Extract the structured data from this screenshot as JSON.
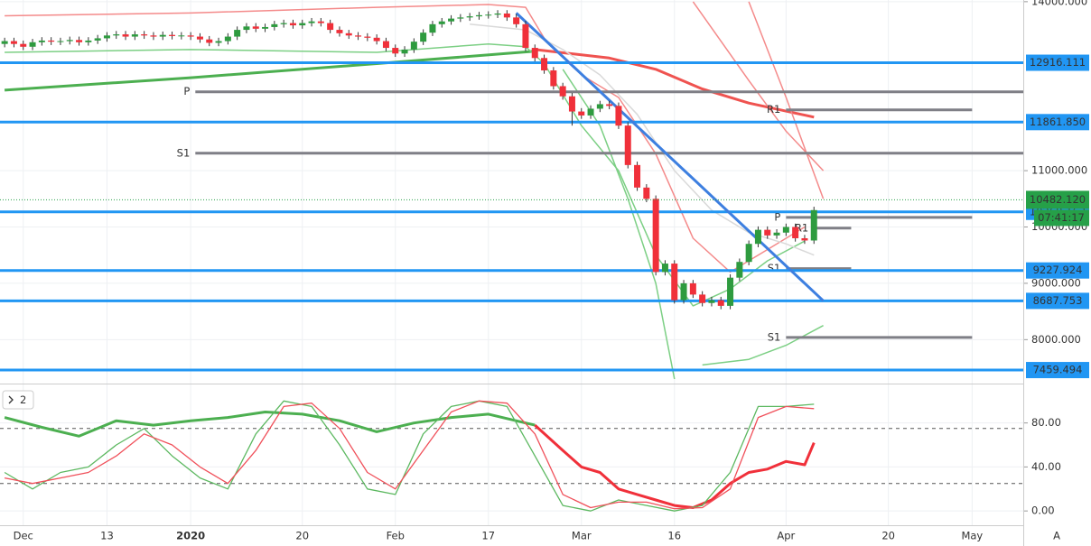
{
  "chart_data": [
    {
      "type": "candlestick",
      "xlim": [
        -0.5,
        109.5
      ],
      "ylim": [
        7220,
        14030
      ],
      "xticks": [
        {
          "value": 2,
          "label": "Dec"
        },
        {
          "value": 11,
          "label": "13"
        },
        {
          "value": 20,
          "label": "2020"
        },
        {
          "value": 32,
          "label": "20"
        },
        {
          "value": 42,
          "label": "Feb"
        },
        {
          "value": 52,
          "label": "17"
        },
        {
          "value": 62,
          "label": "Mar"
        },
        {
          "value": 72,
          "label": "16"
        },
        {
          "value": 84,
          "label": "Apr"
        },
        {
          "value": 95,
          "label": "20"
        },
        {
          "value": 104,
          "label": "May"
        }
      ],
      "yticks": [
        {
          "value": 14000,
          "label": "14000.000"
        },
        {
          "value": 11000,
          "label": "11000.000"
        },
        {
          "value": 10000,
          "label": "10000.000"
        },
        {
          "value": 9000,
          "label": "9000.000"
        },
        {
          "value": 8000,
          "label": "8000.000"
        }
      ],
      "up_color": "#2e9b3f",
      "down_color": "#f0303a",
      "open": [
        13250,
        13300,
        13250,
        13200,
        13280,
        13310,
        13290,
        13300,
        13320,
        13280,
        13310,
        13350,
        13400,
        13420,
        13380,
        13420,
        13400,
        13380,
        13410,
        13390,
        13400,
        13380,
        13330,
        13270,
        13300,
        13380,
        13500,
        13560,
        13520,
        13550,
        13600,
        13620,
        13580,
        13620,
        13650,
        13620,
        13500,
        13440,
        13400,
        13380,
        13360,
        13300,
        13180,
        13080,
        13150,
        13290,
        13450,
        13600,
        13650,
        13700,
        13720,
        13740,
        13760,
        13770,
        13790,
        13720,
        13600,
        13180,
        13000,
        12780,
        12500,
        12320,
        12050,
        11980,
        12100,
        12180,
        12150,
        11800,
        11100,
        10700,
        10500,
        9200,
        9350,
        8700,
        9000,
        8800,
        8650,
        8700,
        8600,
        9100,
        9380,
        9700,
        9950,
        9850,
        9900,
        10000,
        9800,
        9760
      ],
      "high": [
        13360,
        13360,
        13310,
        13340,
        13370,
        13370,
        13360,
        13380,
        13380,
        13370,
        13410,
        13460,
        13480,
        13480,
        13480,
        13480,
        13460,
        13470,
        13470,
        13460,
        13460,
        13440,
        13390,
        13360,
        13440,
        13560,
        13620,
        13620,
        13610,
        13660,
        13680,
        13680,
        13680,
        13710,
        13710,
        13680,
        13560,
        13500,
        13460,
        13440,
        13420,
        13360,
        13240,
        13210,
        13350,
        13510,
        13660,
        13710,
        13760,
        13780,
        13800,
        13820,
        13830,
        13850,
        13850,
        13780,
        13660,
        13240,
        13060,
        12840,
        12560,
        12380,
        12110,
        12160,
        12240,
        12240,
        12210,
        11860,
        11160,
        10760,
        10560,
        9410,
        9410,
        9060,
        9060,
        8860,
        8760,
        8760,
        9160,
        9440,
        9760,
        10010,
        10010,
        9960,
        10060,
        10060,
        9860,
        10360
      ],
      "low": [
        13190,
        13190,
        13140,
        13140,
        13220,
        13230,
        13230,
        13240,
        13220,
        13220,
        13250,
        13290,
        13340,
        13320,
        13320,
        13340,
        13320,
        13320,
        13330,
        13330,
        13320,
        13270,
        13210,
        13210,
        13240,
        13320,
        13440,
        13460,
        13460,
        13490,
        13540,
        13520,
        13520,
        13560,
        13560,
        13440,
        13380,
        13340,
        13320,
        13300,
        13240,
        13120,
        13020,
        13020,
        13090,
        13230,
        13390,
        13540,
        13590,
        13640,
        13660,
        13680,
        13700,
        13710,
        13660,
        13540,
        13120,
        12940,
        12720,
        12440,
        12260,
        11800,
        11920,
        11920,
        12040,
        12090,
        11740,
        11040,
        10640,
        10440,
        9140,
        9140,
        8640,
        8640,
        8740,
        8590,
        8590,
        8540,
        8540,
        9040,
        9320,
        9640,
        9790,
        9790,
        9840,
        9740,
        9700,
        9700
      ],
      "close": [
        13300,
        13250,
        13200,
        13280,
        13310,
        13290,
        13300,
        13320,
        13280,
        13310,
        13350,
        13400,
        13420,
        13380,
        13420,
        13400,
        13380,
        13410,
        13390,
        13400,
        13380,
        13330,
        13270,
        13300,
        13380,
        13500,
        13560,
        13520,
        13550,
        13600,
        13620,
        13580,
        13620,
        13650,
        13620,
        13500,
        13440,
        13400,
        13380,
        13360,
        13300,
        13180,
        13080,
        13150,
        13290,
        13450,
        13600,
        13650,
        13700,
        13720,
        13740,
        13760,
        13770,
        13790,
        13720,
        13600,
        13180,
        13000,
        12780,
        12500,
        12320,
        12050,
        11980,
        12100,
        12180,
        12150,
        11800,
        11100,
        10700,
        10500,
        9200,
        9350,
        8700,
        9000,
        8800,
        8650,
        8700,
        8600,
        9100,
        9380,
        9700,
        9950,
        9850,
        9900,
        10000,
        9800,
        9760,
        10300
      ],
      "overlays": [
        {
          "color": "#4caf50",
          "width": 3,
          "x": [
            0,
            20,
            40,
            57
          ],
          "values": [
            12430,
            12650,
            12900,
            13120
          ]
        },
        {
          "color": "#ef5350",
          "width": 3,
          "x": [
            57,
            65,
            70,
            75,
            80,
            87
          ],
          "values": [
            13150,
            13000,
            12800,
            12450,
            12200,
            11950
          ]
        },
        {
          "color": "#f48a8a",
          "width": 1.5,
          "x": [
            0,
            20,
            40,
            52,
            56,
            58,
            62,
            66,
            70,
            74,
            78,
            82,
            86
          ],
          "values": [
            13750,
            13800,
            13900,
            13950,
            13900,
            13350,
            12700,
            12300,
            11300,
            9800,
            9200,
            9600,
            10000
          ]
        },
        {
          "color": "#7ccf84",
          "width": 1.5,
          "x": [
            0,
            20,
            40,
            52,
            56,
            58,
            62,
            66,
            70,
            74,
            78,
            82,
            86
          ],
          "values": [
            13100,
            13150,
            13100,
            13250,
            13200,
            12900,
            11800,
            11000,
            9500,
            8600,
            8900,
            9400,
            9750
          ]
        },
        {
          "color": "#d9d9d9",
          "width": 1.5,
          "x": [
            50,
            56,
            60,
            64,
            68,
            72,
            76,
            80,
            84,
            87
          ],
          "values": [
            13600,
            13500,
            13150,
            12700,
            12000,
            11000,
            10300,
            9900,
            9700,
            9500
          ]
        },
        {
          "color": "#7ccf84",
          "width": 1.5,
          "x": [
            60,
            64,
            67,
            70,
            72
          ],
          "values": [
            12800,
            11800,
            10500,
            9000,
            7300
          ]
        },
        {
          "color": "#7ccf84",
          "width": 1.5,
          "x": [
            75,
            80,
            84,
            88
          ],
          "values": [
            7550,
            7650,
            7900,
            8250
          ]
        },
        {
          "color": "#f48a8a",
          "width": 1.5,
          "x": [
            74,
            80,
            84,
            88
          ],
          "values": [
            14000,
            12600,
            11700,
            11000
          ]
        },
        {
          "color": "#f48a8a",
          "width": 1.5,
          "x": [
            80,
            84,
            88
          ],
          "values": [
            14000,
            12300,
            10500
          ]
        }
      ],
      "trendline": {
        "color": "#3d7fe0",
        "x": [
          55,
          88
        ],
        "values": [
          13800,
          8690
        ]
      },
      "level_color": "#2196f3",
      "levels": [
        12916.111,
        {
          "value": 11861.85,
          "label": "11861.850"
        },
        10268.163,
        9227.924,
        8687.753,
        7459.494
      ],
      "pivot_color": "#7f7f86",
      "pivots": [
        {
          "label": "P",
          "value": 12400,
          "x": [
            20.5,
            109.5
          ]
        },
        {
          "label": "S1",
          "value": 11310,
          "x": [
            20.5,
            109.5
          ]
        },
        {
          "label": "R1",
          "value": 12080,
          "x": [
            84,
            104
          ]
        },
        {
          "label": "P",
          "value": 10170,
          "x": [
            84,
            104
          ]
        },
        {
          "label": "R1",
          "value": 9980,
          "x": [
            87,
            91
          ]
        },
        {
          "label": "S1",
          "value": 9260,
          "x": [
            84,
            91
          ]
        },
        {
          "label": "S1",
          "value": 8040,
          "x": [
            84,
            104
          ]
        }
      ],
      "last_price": {
        "value": 10482.12,
        "label": "10482.120",
        "countdown": "07:41:17",
        "color": "#26a048"
      }
    },
    {
      "type": "line",
      "pane_label": "2",
      "corner_label": "A",
      "xlim": [
        -0.5,
        109.5
      ],
      "ylim": [
        -13,
        115
      ],
      "yticks": [
        {
          "value": 80,
          "label": "80.00"
        },
        {
          "value": 40,
          "label": "40.00"
        },
        {
          "value": 0,
          "label": "0.00"
        }
      ],
      "bands": [
        75,
        25
      ],
      "series": [
        {
          "color": "#4caf50",
          "width": 3,
          "x": [
            0,
            4,
            8,
            12,
            16,
            20,
            24,
            28,
            32,
            36,
            40,
            44,
            48,
            52,
            56,
            57
          ],
          "values": [
            85,
            76,
            68,
            82,
            78,
            82,
            85,
            90,
            88,
            82,
            72,
            80,
            85,
            88,
            80,
            78
          ]
        },
        {
          "color": "#f0303a",
          "width": 3,
          "x": [
            57,
            60,
            62,
            64,
            66,
            68,
            70,
            72,
            74,
            76,
            78,
            80,
            82,
            84,
            86,
            87
          ],
          "values": [
            78,
            55,
            40,
            35,
            20,
            15,
            10,
            5,
            3,
            10,
            25,
            35,
            38,
            45,
            42,
            62
          ]
        },
        {
          "color": "#5cb860",
          "width": 1.3,
          "x": [
            0,
            3,
            6,
            9,
            12,
            15,
            18,
            21,
            24,
            27,
            30,
            33,
            36,
            39,
            42,
            45,
            48,
            51,
            54,
            57,
            60,
            63,
            66,
            69,
            72,
            75,
            78,
            81,
            84,
            87
          ],
          "values": [
            35,
            20,
            35,
            40,
            60,
            75,
            50,
            30,
            20,
            70,
            100,
            95,
            60,
            20,
            15,
            70,
            95,
            100,
            95,
            50,
            5,
            0,
            10,
            5,
            0,
            5,
            35,
            95,
            95,
            97
          ]
        },
        {
          "color": "#f0505a",
          "width": 1.3,
          "x": [
            0,
            3,
            6,
            9,
            12,
            15,
            18,
            21,
            24,
            27,
            30,
            33,
            36,
            39,
            42,
            45,
            48,
            51,
            54,
            57,
            60,
            63,
            66,
            69,
            72,
            75,
            78,
            81,
            84,
            87
          ],
          "values": [
            30,
            25,
            30,
            35,
            50,
            70,
            60,
            40,
            25,
            55,
            95,
            98,
            75,
            35,
            20,
            55,
            90,
            100,
            98,
            70,
            15,
            3,
            8,
            8,
            2,
            3,
            20,
            85,
            95,
            93
          ]
        }
      ]
    }
  ]
}
